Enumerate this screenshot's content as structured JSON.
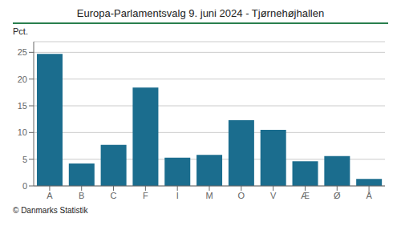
{
  "chart_data": {
    "type": "bar",
    "title": "Europa-Parlamentsvalg 9. juni 2024 - Tjørnehøjhallen",
    "ylabel": "Pct.",
    "annotations": [
      "© Danmarks Statistik"
    ],
    "categories": [
      "A",
      "B",
      "C",
      "F",
      "I",
      "M",
      "O",
      "V",
      "Æ",
      "Ø",
      "Å"
    ],
    "values": [
      24.7,
      4.2,
      7.7,
      18.4,
      5.3,
      5.8,
      12.3,
      10.5,
      4.6,
      5.6,
      1.3
    ],
    "color": "#1b6d8e",
    "ylim": [
      0,
      27
    ],
    "yticks": [
      0,
      5,
      10,
      15,
      20,
      25
    ],
    "grid": true
  }
}
